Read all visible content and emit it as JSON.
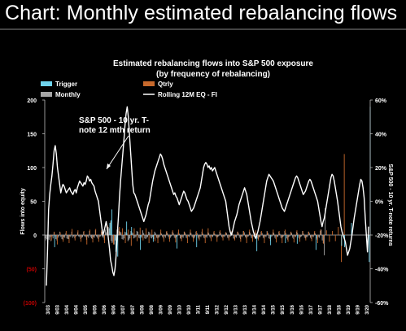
{
  "slide_title": "Chart: Monthly estimated rebalancing flows",
  "chart_data": {
    "type": "bar",
    "title": "Estimated rebalancing flows into S&P 500 exposure",
    "subtitle": "(by frequency of rebalancing)",
    "ylabel": "Flows into equity",
    "y2label": "S&P 500 - 10 yr. T-note returns",
    "ylim": [
      -100,
      200
    ],
    "y_ticks": [
      "200",
      "150",
      "100",
      "50",
      "0",
      "(50)",
      "(100)"
    ],
    "y_tick_values": [
      200,
      150,
      100,
      50,
      0,
      -50,
      -100
    ],
    "y2lim": [
      -0.6,
      0.6
    ],
    "y2_ticks": [
      "60%",
      "40%",
      "20%",
      "0%",
      "-20%",
      "-40%",
      "-60%"
    ],
    "y2_tick_values": [
      0.6,
      0.4,
      0.2,
      0.0,
      -0.2,
      -0.4,
      -0.6
    ],
    "x_ticks": [
      "3/03",
      "9/03",
      "3/04",
      "9/04",
      "3/05",
      "9/05",
      "3/06",
      "9/06",
      "3/07",
      "9/07",
      "3/08",
      "9/08",
      "3/09",
      "9/09",
      "3/10",
      "9/10",
      "3/11",
      "9/11",
      "3/12",
      "9/12",
      "3/13",
      "9/13",
      "3/14",
      "9/14",
      "3/15",
      "9/15",
      "3/16",
      "9/16",
      "3/17",
      "9/17",
      "3/18",
      "9/18",
      "3/19",
      "9/19",
      "3/20"
    ],
    "legend": [
      {
        "name": "Trigger",
        "color": "#6fd4ee"
      },
      {
        "name": "Qtrly",
        "color": "#c8692c"
      },
      {
        "name": "Monthly",
        "color": "#a6a6a6"
      },
      {
        "name": "Rolling 12M EQ - FI",
        "color": "#ffffff"
      }
    ],
    "annotation": {
      "lines": [
        "S&P 500 - 10 yr. T-",
        "note 12 mth return"
      ]
    },
    "series": [
      {
        "name": "Trigger",
        "values": [
          0,
          0,
          0,
          0,
          0,
          0,
          0,
          0,
          0,
          -18,
          0,
          0,
          0,
          0,
          0,
          0,
          0,
          0,
          0,
          0,
          0,
          0,
          0,
          0,
          0,
          0,
          0,
          0,
          0,
          0,
          0,
          0,
          0,
          0,
          0,
          0,
          0,
          0,
          0,
          0,
          0,
          0,
          0,
          0,
          0,
          0,
          0,
          0,
          0,
          0,
          0,
          0,
          0,
          0,
          0,
          0,
          0,
          0,
          0,
          0,
          0,
          0,
          0,
          0,
          0,
          18,
          22,
          38,
          0,
          0,
          0,
          -25,
          0,
          -32,
          0,
          0,
          0,
          0,
          0,
          0,
          0,
          0,
          20,
          0,
          0,
          0,
          0,
          12,
          0,
          0,
          0,
          0,
          0,
          0,
          0,
          0,
          -22,
          0,
          0,
          0,
          0,
          0,
          0,
          0,
          0,
          0,
          0,
          0,
          0,
          -10,
          0,
          0,
          0,
          0,
          0,
          0,
          0,
          0,
          0,
          0,
          0,
          0,
          0,
          0,
          0,
          0,
          0,
          0,
          0,
          0,
          0,
          0,
          0,
          -20,
          0,
          0,
          0,
          0,
          0,
          0,
          0,
          0,
          0,
          0,
          0,
          0,
          0,
          0,
          0,
          0,
          0,
          0,
          0,
          -18,
          0,
          0,
          0,
          0,
          0,
          0,
          0,
          0,
          0,
          0,
          0,
          0,
          0,
          0,
          0,
          0,
          0,
          0,
          0,
          0,
          0,
          0,
          0,
          0,
          0,
          0,
          0,
          0,
          0,
          0,
          0,
          0,
          0,
          0,
          0,
          0,
          0,
          0,
          0,
          0,
          0,
          0,
          0,
          0,
          0,
          0,
          0,
          0,
          0,
          0,
          0,
          0,
          0,
          0,
          0,
          0,
          0,
          0,
          0,
          0,
          -24,
          0,
          0,
          0,
          0,
          0,
          0,
          0,
          0,
          0,
          0,
          0,
          0,
          0,
          -15,
          0,
          0,
          0,
          0,
          0,
          0,
          0,
          0,
          0,
          0,
          0,
          0,
          0,
          0,
          -12,
          0,
          0,
          0,
          0,
          0,
          0,
          0,
          0,
          0,
          0,
          0,
          -13,
          0,
          0,
          0,
          0,
          0,
          0,
          0,
          0,
          0,
          0,
          0,
          0,
          0,
          0,
          0,
          0,
          0,
          0,
          -22,
          0,
          0,
          0,
          0,
          0,
          0,
          0,
          0,
          0,
          0,
          0,
          0,
          0,
          0,
          0,
          0,
          0,
          0,
          0,
          0,
          0,
          0,
          0,
          0,
          0,
          -16,
          0,
          0,
          -18,
          0,
          0,
          0,
          0,
          0,
          0,
          18,
          0,
          0,
          0,
          0,
          0,
          0,
          0,
          0,
          0,
          0,
          0,
          0,
          0,
          0,
          0,
          0,
          0,
          -40,
          190
        ]
      },
      {
        "name": "Qtrly",
        "values": [
          0,
          0,
          0,
          0,
          0,
          0,
          -8,
          0,
          0,
          5,
          0,
          0,
          -14,
          0,
          0,
          4,
          0,
          0,
          -10,
          0,
          0,
          6,
          0,
          0,
          -12,
          0,
          0,
          9,
          0,
          0,
          -8,
          0,
          0,
          7,
          0,
          0,
          -10,
          0,
          0,
          6,
          0,
          0,
          -14,
          0,
          0,
          8,
          0,
          0,
          -11,
          0,
          0,
          9,
          0,
          0,
          -10,
          0,
          0,
          7,
          0,
          0,
          -12,
          0,
          0,
          14,
          0,
          0,
          20,
          0,
          0,
          -14,
          0,
          0,
          -22,
          0,
          0,
          12,
          0,
          0,
          10,
          0,
          0,
          -12,
          0,
          0,
          8,
          0,
          0,
          -16,
          0,
          0,
          10,
          0,
          0,
          -9,
          0,
          0,
          11,
          0,
          0,
          -8,
          0,
          0,
          10,
          0,
          0,
          -12,
          0,
          0,
          8,
          0,
          0,
          -9,
          0,
          0,
          -12,
          0,
          0,
          8,
          0,
          0,
          -10,
          0,
          0,
          6,
          0,
          0,
          -10,
          0,
          0,
          7,
          0,
          0,
          -11,
          0,
          0,
          8,
          0,
          0,
          -9,
          0,
          0,
          5,
          0,
          0,
          -12,
          0,
          0,
          8,
          0,
          0,
          -10,
          0,
          0,
          6,
          0,
          0,
          -8,
          0,
          0,
          9,
          0,
          0,
          -12,
          0,
          0,
          10,
          0,
          0,
          -9,
          0,
          0,
          6,
          0,
          0,
          -10,
          0,
          0,
          7,
          0,
          0,
          -8,
          0,
          0,
          4,
          0,
          0,
          -8,
          0,
          0,
          6,
          0,
          0,
          -8,
          0,
          0,
          5,
          0,
          0,
          -10,
          0,
          0,
          6,
          0,
          0,
          -12,
          0,
          0,
          8,
          0,
          0,
          -10,
          0,
          0,
          7,
          0,
          0,
          -8,
          0,
          0,
          6,
          0,
          0,
          -12,
          0,
          0,
          5,
          0,
          0,
          -9,
          0,
          0,
          8,
          0,
          0,
          -11,
          0,
          0,
          6,
          0,
          0,
          -12,
          0,
          0,
          8,
          0,
          0,
          -10,
          0,
          0,
          5,
          0,
          0,
          -11,
          0,
          0,
          7,
          0,
          0,
          -10,
          0,
          0,
          6,
          0,
          0,
          -8,
          0,
          0,
          5,
          0,
          0,
          -9,
          0,
          0,
          6,
          0,
          0,
          -12,
          0,
          0,
          8,
          0,
          0,
          -13,
          0,
          0,
          7,
          0,
          0,
          -10,
          0,
          0,
          6,
          0,
          0,
          -9,
          0,
          0,
          12,
          0,
          0,
          -40,
          0,
          0,
          120
        ]
      },
      {
        "name": "Monthly",
        "values": [
          -5,
          -8,
          -6,
          -4,
          -7,
          -3,
          -9,
          -2,
          -5,
          4,
          -3,
          -6,
          -8,
          -4,
          -2,
          5,
          -3,
          -6,
          -7,
          -3,
          -4,
          3,
          -5,
          -6,
          -6,
          -2,
          -3,
          5,
          -4,
          -2,
          -5,
          -3,
          -1,
          4,
          -2,
          -3,
          -6,
          -4,
          -3,
          5,
          -2,
          -3,
          -7,
          -2,
          -4,
          6,
          -3,
          -5,
          -6,
          -3,
          -4,
          7,
          -2,
          -4,
          -6,
          -3,
          -2,
          5,
          -3,
          -4,
          -7,
          8,
          4,
          9,
          12,
          10,
          14,
          -9,
          -12,
          -10,
          -14,
          -8,
          -16,
          8,
          10,
          6,
          5,
          4,
          -6,
          -7,
          -5,
          5,
          4,
          3,
          -9,
          -7,
          -5,
          6,
          4,
          3,
          -5,
          -4,
          -3,
          6,
          5,
          -4,
          -5,
          -3,
          -4,
          7,
          3,
          -5,
          -6,
          -4,
          -3,
          5,
          4,
          -4,
          -5,
          -3,
          -6,
          5,
          3,
          -4,
          -5,
          -4,
          -3,
          4,
          2,
          -3,
          -5,
          -2,
          -4,
          5,
          3,
          -3,
          -6,
          -4,
          -2,
          5,
          3,
          -4,
          -5,
          -3,
          -2,
          4,
          2,
          -5,
          -6,
          -3,
          -4,
          5,
          3,
          -4,
          -5,
          -2,
          -3,
          4,
          3,
          -3,
          -4,
          -5,
          -3,
          5,
          3,
          -4,
          -6,
          -2,
          -3,
          5,
          2,
          -4,
          -5,
          -3,
          -4,
          4,
          3,
          -3,
          -5,
          -2,
          -3,
          4,
          2,
          -2,
          -4,
          -3,
          -2,
          5,
          3,
          -3,
          -4,
          -2,
          -3,
          4,
          3,
          -4,
          -5,
          -3,
          -2,
          5,
          2,
          -5,
          -6,
          -3,
          -4,
          5,
          3,
          -4,
          -6,
          -2,
          -3,
          6,
          4,
          -3,
          -5,
          -3,
          -2,
          5,
          3,
          -4,
          -5,
          -2,
          -3,
          4,
          2,
          -5,
          -6,
          -3,
          -3,
          5,
          3,
          -4,
          -5,
          -2,
          -3,
          6,
          3,
          -5,
          -6,
          -3,
          -2,
          4,
          3,
          -4,
          -6,
          -2,
          -3,
          5,
          2,
          -4,
          -5,
          -3,
          -2,
          6,
          3,
          -5,
          -7,
          -3,
          -2,
          4,
          3,
          -4,
          -6,
          -2,
          -3,
          5,
          3,
          -4,
          -6,
          -3,
          -2,
          6,
          2,
          -4,
          -5,
          -3,
          -3,
          5,
          3,
          -4,
          -6,
          -2,
          -3,
          4,
          2,
          -5,
          -7,
          -3,
          -4,
          6,
          8,
          -8,
          -12,
          -30,
          40
        ]
      },
      {
        "name": "Rolling 12M EQ - FI",
        "axis": "y2",
        "values": [
          -0.5,
          -0.3,
          -0.05,
          0.04,
          0.1,
          0.15,
          0.22,
          0.3,
          0.33,
          0.28,
          0.2,
          0.15,
          0.1,
          0.05,
          0.08,
          0.1,
          0.09,
          0.07,
          0.05,
          0.06,
          0.07,
          0.08,
          0.06,
          0.05,
          0.04,
          0.06,
          0.07,
          0.05,
          0.08,
          0.1,
          0.12,
          0.11,
          0.1,
          0.09,
          0.11,
          0.1,
          0.12,
          0.15,
          0.14,
          0.12,
          0.13,
          0.11,
          0.1,
          0.09,
          0.06,
          0.04,
          0.02,
          0.0,
          -0.05,
          -0.1,
          -0.15,
          -0.2,
          -0.18,
          -0.15,
          -0.12,
          -0.16,
          -0.22,
          -0.28,
          -0.35,
          -0.38,
          -0.42,
          -0.44,
          -0.4,
          -0.32,
          -0.2,
          -0.1,
          0.02,
          0.12,
          0.2,
          0.28,
          0.36,
          0.45,
          0.52,
          0.56,
          0.5,
          0.4,
          0.3,
          0.2,
          0.1,
          0.05,
          0.04,
          0.02,
          0.0,
          -0.02,
          -0.04,
          -0.06,
          -0.08,
          -0.1,
          -0.12,
          -0.1,
          -0.08,
          -0.05,
          -0.02,
          0.0,
          0.04,
          0.08,
          0.12,
          0.15,
          0.18,
          0.2,
          0.22,
          0.24,
          0.26,
          0.28,
          0.27,
          0.25,
          0.22,
          0.2,
          0.18,
          0.16,
          0.14,
          0.12,
          0.1,
          0.08,
          0.06,
          0.04,
          0.05,
          0.03,
          0.02,
          0.0,
          -0.02,
          0.0,
          0.02,
          0.04,
          0.06,
          0.05,
          0.03,
          0.01,
          0.0,
          -0.02,
          -0.04,
          -0.06,
          -0.05,
          -0.04,
          -0.02,
          0.0,
          0.02,
          0.04,
          0.06,
          0.08,
          0.12,
          0.16,
          0.2,
          0.22,
          0.23,
          0.22,
          0.2,
          0.21,
          0.19,
          0.2,
          0.18,
          0.19,
          0.2,
          0.18,
          0.16,
          0.14,
          0.12,
          0.1,
          0.08,
          0.06,
          0.04,
          0.02,
          0.0,
          -0.05,
          -0.1,
          -0.15,
          -0.18,
          -0.2,
          -0.18,
          -0.15,
          -0.12,
          -0.1,
          -0.08,
          -0.05,
          -0.02,
          0.0,
          0.02,
          0.04,
          0.06,
          0.08,
          0.06,
          0.04,
          0.0,
          -0.04,
          -0.08,
          -0.12,
          -0.15,
          -0.18,
          -0.2,
          -0.22,
          -0.2,
          -0.18,
          -0.15,
          -0.12,
          -0.08,
          -0.04,
          0.0,
          0.04,
          0.08,
          0.12,
          0.14,
          0.16,
          0.15,
          0.14,
          0.13,
          0.12,
          0.1,
          0.08,
          0.06,
          0.04,
          0.02,
          0.0,
          -0.02,
          -0.04,
          -0.05,
          -0.06,
          -0.04,
          -0.02,
          0.0,
          0.02,
          0.04,
          0.06,
          0.08,
          0.1,
          0.12,
          0.14,
          0.15,
          0.14,
          0.12,
          0.1,
          0.08,
          0.06,
          0.04,
          0.05,
          0.06,
          0.08,
          0.1,
          0.12,
          0.13,
          0.12,
          0.1,
          0.08,
          0.06,
          0.04,
          0.02,
          0.0,
          -0.04,
          -0.08,
          -0.12,
          -0.15,
          -0.12,
          -0.1,
          -0.06,
          -0.02,
          0.02,
          0.06,
          0.1,
          0.14,
          0.16,
          0.15,
          0.12,
          0.08,
          0.04,
          0.0,
          -0.05,
          -0.1,
          -0.15,
          -0.18,
          -0.2,
          -0.22,
          -0.24,
          -0.28,
          -0.32,
          -0.3,
          -0.28,
          -0.24,
          -0.2,
          -0.15,
          -0.1,
          -0.06,
          -0.02,
          0.02,
          0.06,
          0.1,
          0.13,
          0.12,
          0.08,
          0.02,
          -0.1,
          -0.2,
          -0.3,
          -0.15
        ]
      }
    ]
  }
}
